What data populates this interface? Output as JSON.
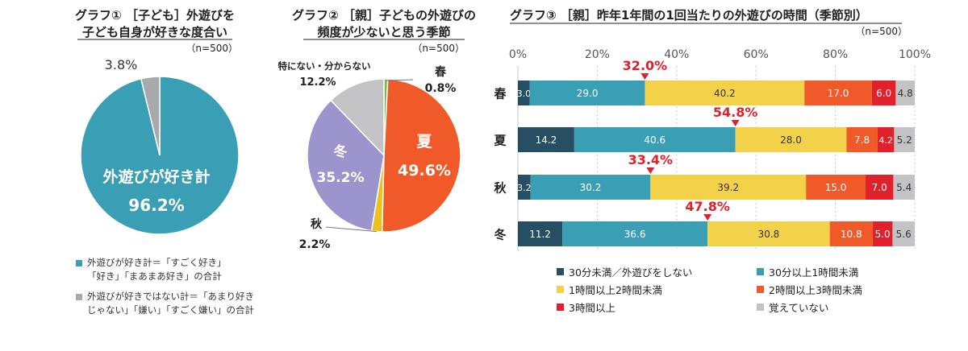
{
  "chart1": {
    "title_line1": "グラフ① ［子ども］外遊びを",
    "title_line2": "子ども自身が好きな度合い",
    "n_label": "（n=500）",
    "chart_data": {
      "type": "pie",
      "slices": [
        {
          "name": "外遊びが好き計",
          "value": 96.2,
          "color": "#3a9fb4",
          "label_name": "外遊びが好き計",
          "label_value": "96.2%"
        },
        {
          "name": "外遊びが好きではない計",
          "value": 3.8,
          "color": "#a7a9ac",
          "label_name": "",
          "label_value": "3.8%"
        }
      ]
    },
    "legend": [
      {
        "color": "#3a9fb4",
        "lines": [
          "外遊びが好き計＝「すごく好き」",
          "「好き」「まあまあ好き」の合計"
        ]
      },
      {
        "color": "#a7a9ac",
        "lines": [
          "外遊びが好きではない計＝「あまり好き",
          "じゃない」「嫌い」「すごく嫌い」の合計"
        ]
      }
    ]
  },
  "chart2": {
    "title_line1": "グラフ② ［親］子どもの外遊びの",
    "title_line2": "頻度が少ないと思う季節",
    "n_label": "（n=500）",
    "chart_data": {
      "type": "pie",
      "slices": [
        {
          "name": "春",
          "value": 0.8,
          "color": "#7ab648",
          "label_value": "0.8%"
        },
        {
          "name": "夏",
          "value": 49.6,
          "color": "#ef5a28",
          "label_value": "49.6%"
        },
        {
          "name": "秋",
          "value": 2.2,
          "color": "#e8c21d",
          "label_value": "2.2%"
        },
        {
          "name": "冬",
          "value": 35.2,
          "color": "#9c94cc",
          "label_value": "35.2%"
        },
        {
          "name": "特にない・分からない",
          "value": 12.2,
          "color": "#c3c3c5",
          "label_value": "12.2%"
        }
      ]
    }
  },
  "chart3": {
    "title": "グラフ③ ［親］昨年1年間の1回当たりの外遊びの時間（季節別）",
    "n_label": "（n=500）",
    "chart_data": {
      "type": "bar",
      "orientation": "horizontal",
      "stacked": true,
      "categories": [
        "春",
        "夏",
        "秋",
        "冬"
      ],
      "xlim": [
        0,
        100
      ],
      "ticks": [
        "0%",
        "20%",
        "40%",
        "60%",
        "80%",
        "100%"
      ],
      "series": [
        {
          "name": "30分未満／外遊びをしない",
          "color": "#264f63",
          "values": [
            3.0,
            14.2,
            3.2,
            11.2
          ]
        },
        {
          "name": "30分以上1時間未満",
          "color": "#3a9fb4",
          "values": [
            29.0,
            40.6,
            30.2,
            36.6
          ]
        },
        {
          "name": "1時間以上2時間未満",
          "color": "#f3d149",
          "values": [
            40.2,
            28.0,
            39.2,
            30.8
          ]
        },
        {
          "name": "2時間以上3時間未満",
          "color": "#ef5a28",
          "values": [
            17.0,
            7.8,
            15.0,
            10.8
          ]
        },
        {
          "name": "3時間以上",
          "color": "#e0202a",
          "values": [
            6.0,
            4.2,
            7.0,
            5.0
          ]
        },
        {
          "name": "覚えていない",
          "color": "#c3c3c5",
          "values": [
            4.8,
            5.2,
            5.4,
            5.6
          ]
        }
      ],
      "annotations": [
        "32.0%",
        "54.8%",
        "33.4%",
        "47.8%"
      ],
      "annotation_color": "#e0202a"
    }
  }
}
